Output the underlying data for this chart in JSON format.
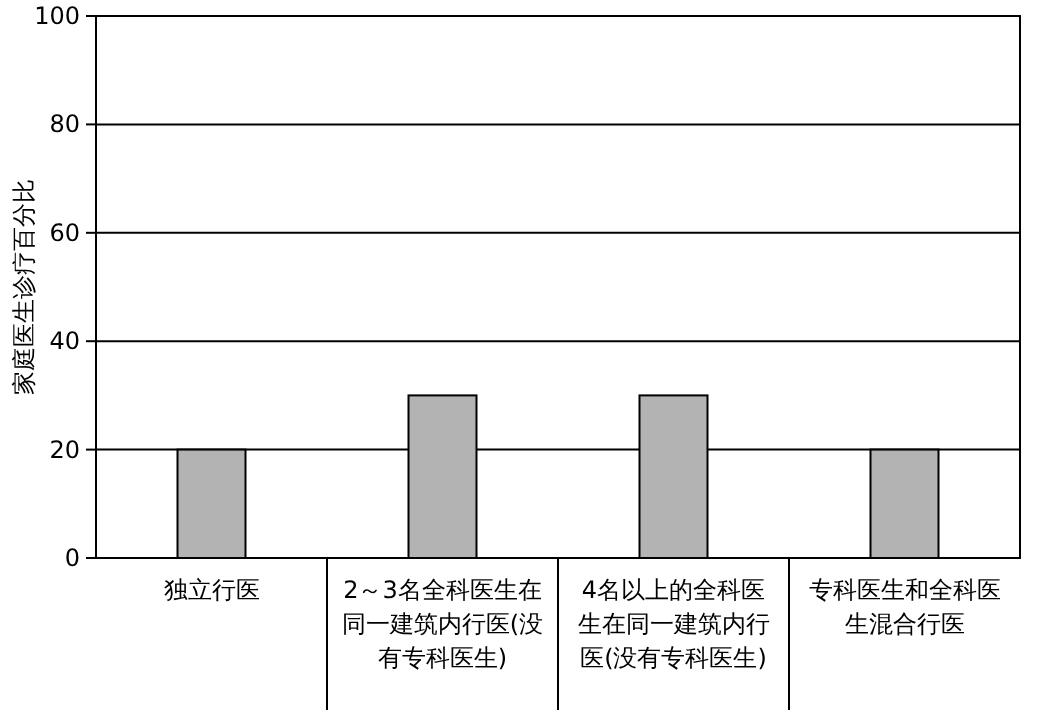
{
  "chart_data": {
    "type": "bar",
    "ylabel": "家庭医生诊疗百分比",
    "categories": [
      "独立行医",
      "2～3名全科医生在同一建筑内行医(没有专科医生)",
      "4名以上的全科医生在同一建筑内行医(没有专科医生)",
      "专科医生和全科医生混合行医"
    ],
    "values": [
      20,
      30,
      30,
      20
    ],
    "color": "#b3b3b3",
    "ylim": [
      0,
      100
    ],
    "yticks": [
      0,
      20,
      40,
      60,
      80,
      100
    ],
    "grid": "y"
  }
}
